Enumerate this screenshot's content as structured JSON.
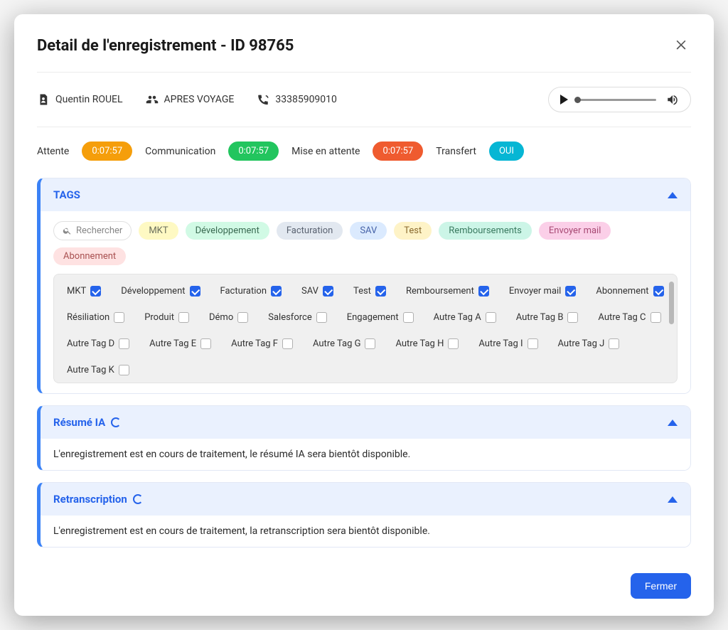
{
  "header": {
    "title": "Detail de l'enregistrement - ID 98765"
  },
  "info": {
    "person": "Quentin ROUEL",
    "group": "APRES VOYAGE",
    "phone": "33385909010"
  },
  "metrics": {
    "items": [
      {
        "label": "Attente",
        "value": "0:07:57",
        "color": "#f59e0b"
      },
      {
        "label": "Communication",
        "value": "0:07:57",
        "color": "#22c55e"
      },
      {
        "label": "Mise en attente",
        "value": "0:07:57",
        "color": "#ef5b2f"
      },
      {
        "label": "Transfert",
        "value": "OUI",
        "color": "#06b6d4"
      }
    ]
  },
  "tags_panel": {
    "title": "TAGS",
    "search_placeholder": "Rechercher",
    "pills": [
      {
        "label": "MKT",
        "bg": "#fef9c3",
        "fg": "#6b705c"
      },
      {
        "label": "Développement",
        "bg": "#d1fae5",
        "fg": "#3b6b52"
      },
      {
        "label": "Facturation",
        "bg": "#e2e8f0",
        "fg": "#5a6270"
      },
      {
        "label": "SAV",
        "bg": "#dbeafe",
        "fg": "#4763a8"
      },
      {
        "label": "Test",
        "bg": "#fef3c7",
        "fg": "#8a6a2f"
      },
      {
        "label": "Remboursements",
        "bg": "#ccf5e7",
        "fg": "#3a7a60"
      },
      {
        "label": "Envoyer mail",
        "bg": "#fbcfe8",
        "fg": "#a84a74"
      },
      {
        "label": "Abonnement",
        "bg": "#fee2e2",
        "fg": "#a85050"
      }
    ],
    "checkbox_tags": [
      {
        "label": "MKT",
        "checked": true
      },
      {
        "label": "Développement",
        "checked": true
      },
      {
        "label": "Facturation",
        "checked": true
      },
      {
        "label": "SAV",
        "checked": true
      },
      {
        "label": "Test",
        "checked": true
      },
      {
        "label": "Remboursement",
        "checked": true
      },
      {
        "label": "Envoyer mail",
        "checked": true
      },
      {
        "label": "Abonnement",
        "checked": true
      },
      {
        "label": "Résiliation",
        "checked": false
      },
      {
        "label": "Produit",
        "checked": false
      },
      {
        "label": "Démo",
        "checked": false
      },
      {
        "label": "Salesforce",
        "checked": false
      },
      {
        "label": "Engagement",
        "checked": false
      },
      {
        "label": "Autre Tag A",
        "checked": false
      },
      {
        "label": "Autre Tag B",
        "checked": false
      },
      {
        "label": "Autre Tag C",
        "checked": false
      },
      {
        "label": "Autre Tag D",
        "checked": false
      },
      {
        "label": "Autre Tag E",
        "checked": false
      },
      {
        "label": "Autre Tag F",
        "checked": false
      },
      {
        "label": "Autre Tag G",
        "checked": false
      },
      {
        "label": "Autre Tag H",
        "checked": false
      },
      {
        "label": "Autre Tag I",
        "checked": false
      },
      {
        "label": "Autre Tag J",
        "checked": false
      },
      {
        "label": "Autre Tag K",
        "checked": false
      }
    ]
  },
  "resume_panel": {
    "title": "Résumé IA",
    "body": "L'enregistrement est en cours de traitement, le résumé IA sera bientôt disponible."
  },
  "transcript_panel": {
    "title": "Retranscription",
    "body": "L'enregistrement est en cours de traitement, la retranscription sera bientôt disponible."
  },
  "footer": {
    "close_label": "Fermer"
  }
}
